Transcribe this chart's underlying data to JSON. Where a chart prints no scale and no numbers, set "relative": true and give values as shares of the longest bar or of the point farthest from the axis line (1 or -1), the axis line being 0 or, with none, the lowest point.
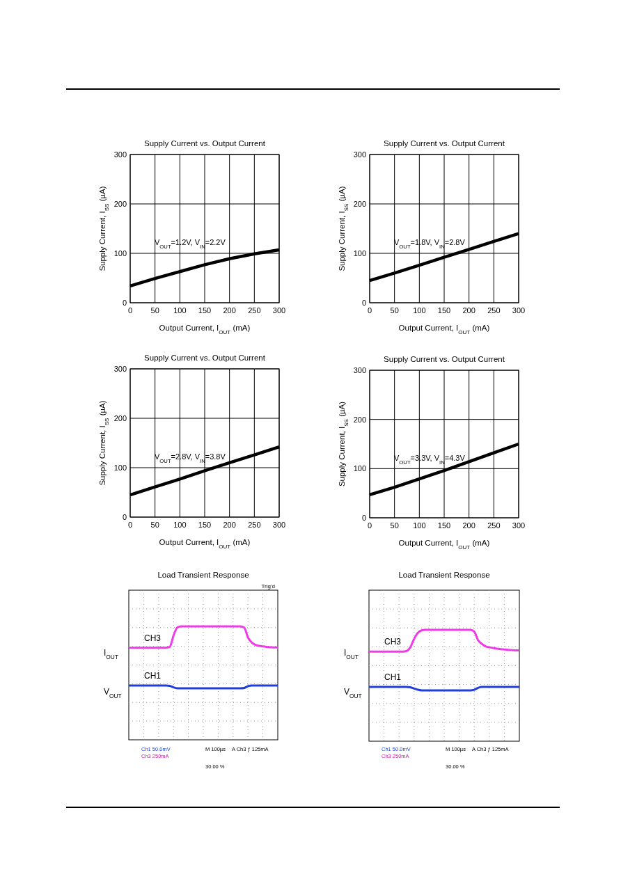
{
  "chart_data": [
    {
      "type": "line",
      "title": "Supply Current vs. Output Current",
      "xlabel": "Output Current, I$_{OUT}$ (mA)",
      "ylabel": "Supply Current, I$_{SS}$ (µA)",
      "x": [
        0,
        50,
        100,
        150,
        200,
        250,
        300
      ],
      "xlim": [
        0,
        300
      ],
      "xticks": [
        0,
        50,
        100,
        150,
        200,
        250,
        300
      ],
      "ylim": [
        0,
        300
      ],
      "yticks": [
        0,
        100,
        200,
        300
      ],
      "grid": true,
      "annotations": [
        "V$_{OUT}$=1.2V, V$_{IN}$=2.2V"
      ],
      "series": [
        {
          "color": "#000000",
          "values": [
            34,
            49,
            63,
            77,
            89,
            99,
            107
          ]
        }
      ]
    },
    {
      "type": "line",
      "title": "Supply Current vs. Output Current",
      "xlabel": "Output Current, I$_{OUT}$ (mA)",
      "ylabel": "Supply Current, I$_{SS}$ (µA)",
      "x": [
        0,
        50,
        100,
        150,
        200,
        250,
        300
      ],
      "xlim": [
        0,
        300
      ],
      "xticks": [
        0,
        50,
        100,
        150,
        200,
        250,
        300
      ],
      "ylim": [
        0,
        300
      ],
      "yticks": [
        0,
        100,
        200,
        300
      ],
      "grid": true,
      "annotations": [
        "V$_{OUT}$=1.8V, V$_{IN}$=2.8V"
      ],
      "series": [
        {
          "color": "#000000",
          "values": [
            45,
            60,
            76,
            92,
            108,
            124,
            140
          ]
        }
      ]
    },
    {
      "type": "line",
      "title": "Supply Current vs. Output Current",
      "xlabel": "Output Current, I$_{OUT}$ (mA)",
      "ylabel": "Supply Current, I$_{SS}$ (µA)",
      "x": [
        0,
        50,
        100,
        150,
        200,
        250,
        300
      ],
      "xlim": [
        0,
        300
      ],
      "xticks": [
        0,
        50,
        100,
        150,
        200,
        250,
        300
      ],
      "ylim": [
        0,
        300
      ],
      "yticks": [
        0,
        100,
        200,
        300
      ],
      "grid": true,
      "annotations": [
        "V$_{OUT}$=2.8V, V$_{IN}$=3.8V"
      ],
      "series": [
        {
          "color": "#000000",
          "values": [
            45,
            61,
            77,
            94,
            110,
            126,
            142
          ]
        }
      ]
    },
    {
      "type": "line",
      "title": "Supply Current vs. Output Current",
      "xlabel": "Output Current, I$_{OUT}$ (mA)",
      "ylabel": "Supply Current, I$_{SS}$ (µA)",
      "x": [
        0,
        50,
        100,
        150,
        200,
        250,
        300
      ],
      "xlim": [
        0,
        300
      ],
      "xticks": [
        0,
        50,
        100,
        150,
        200,
        250,
        300
      ],
      "ylim": [
        0,
        300
      ],
      "yticks": [
        0,
        100,
        200,
        300
      ],
      "grid": true,
      "annotations": [
        "V$_{OUT}$=3.3V, V$_{IN}$=4.3V"
      ],
      "series": [
        {
          "color": "#000000",
          "values": [
            47,
            62,
            79,
            96,
            114,
            132,
            150
          ]
        }
      ]
    },
    {
      "type": "line",
      "title": "Load Transient Response",
      "relative": true,
      "grid": true,
      "categories": [
        null,
        null,
        null,
        null,
        null,
        null,
        null,
        null,
        null,
        null,
        null,
        null,
        null,
        null,
        null,
        null,
        null,
        null,
        null,
        null,
        null,
        null,
        null,
        null,
        null,
        null,
        null,
        null,
        null,
        null,
        null,
        null,
        null,
        null,
        null,
        null,
        null,
        null,
        null,
        null,
        null
      ],
      "annotations": [
        "I$_{OUT}$",
        "V$_{OUT}$",
        "Ch1 50.0mV",
        "Ch3 250mA",
        "M 100µs",
        "A Ch3 ƒ 125mA",
        "30.00 %",
        "Trig'd"
      ],
      "series": [
        {
          "name": "CH3",
          "color": "#f03ce8",
          "values": [
            0.812,
            0.812,
            0.812,
            0.812,
            0.812,
            0.812,
            0.812,
            0.812,
            0.812,
            0.812,
            0.812,
            0.82,
            0.918,
            0.989,
            1,
            1,
            1,
            1,
            1,
            1,
            1,
            1,
            1,
            1,
            1,
            1,
            1,
            1,
            1,
            1,
            1,
            0.989,
            0.902,
            0.858,
            0.836,
            0.828,
            0.823,
            0.819,
            0.816,
            0.814,
            0.814
          ]
        },
        {
          "name": "CH1",
          "color": "#1f3fd8",
          "values": [
            0.479,
            0.479,
            0.479,
            0.479,
            0.479,
            0.479,
            0.479,
            0.479,
            0.479,
            0.479,
            0.479,
            0.476,
            0.462,
            0.454,
            0.454,
            0.454,
            0.454,
            0.454,
            0.454,
            0.454,
            0.454,
            0.454,
            0.454,
            0.454,
            0.454,
            0.454,
            0.454,
            0.454,
            0.454,
            0.454,
            0.454,
            0.457,
            0.473,
            0.479,
            0.479,
            0.479,
            0.479,
            0.479,
            0.479,
            0.479,
            0.479
          ]
        }
      ]
    },
    {
      "type": "line",
      "title": "Load Transient Response",
      "relative": true,
      "grid": true,
      "categories": [
        null,
        null,
        null,
        null,
        null,
        null,
        null,
        null,
        null,
        null,
        null,
        null,
        null,
        null,
        null,
        null,
        null,
        null,
        null,
        null,
        null,
        null,
        null,
        null,
        null,
        null,
        null,
        null,
        null,
        null,
        null,
        null,
        null,
        null,
        null,
        null,
        null,
        null,
        null,
        null,
        null
      ],
      "annotations": [
        "I$_{OUT}$",
        "V$_{OUT}$",
        "Ch1 50.0mV",
        "Ch3 250mA",
        "M 100µs",
        "A Ch3 ƒ 125mA",
        "30.00 %"
      ],
      "series": [
        {
          "name": "CH3",
          "color": "#f03ce8",
          "values": [
            0.805,
            0.805,
            0.805,
            0.805,
            0.805,
            0.805,
            0.805,
            0.805,
            0.805,
            0.805,
            0.81,
            0.843,
            0.919,
            0.973,
            0.995,
            1,
            1,
            1,
            1,
            1,
            1,
            1,
            1,
            1,
            1,
            1,
            1,
            1,
            0.984,
            0.908,
            0.875,
            0.853,
            0.843,
            0.837,
            0.832,
            0.826,
            0.824,
            0.821,
            0.818,
            0.815,
            0.815
          ]
        },
        {
          "name": "CH1",
          "color": "#1f3fd8",
          "values": [
            0.488,
            0.488,
            0.488,
            0.488,
            0.488,
            0.488,
            0.488,
            0.488,
            0.488,
            0.488,
            0.488,
            0.484,
            0.473,
            0.462,
            0.457,
            0.457,
            0.457,
            0.457,
            0.457,
            0.457,
            0.457,
            0.457,
            0.457,
            0.457,
            0.457,
            0.457,
            0.457,
            0.457,
            0.462,
            0.479,
            0.487,
            0.488,
            0.488,
            0.488,
            0.488,
            0.488,
            0.488,
            0.488,
            0.488,
            0.488,
            0.488
          ]
        }
      ]
    }
  ]
}
